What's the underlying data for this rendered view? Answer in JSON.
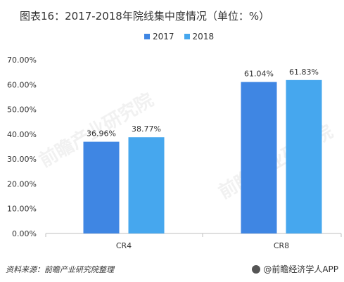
{
  "title": "图表16：2017-2018年院线集中度情况（单位：%）",
  "source": "资料来源：前瞻产业研究院整理",
  "brand": "@前瞻经济学人APP",
  "watermark": "前瞻产业研究院",
  "colors": {
    "s2017": "#3f86e3",
    "s2018": "#46a7ee",
    "axis": "#bfbfbf",
    "text": "#333333"
  },
  "chart_data": {
    "type": "bar",
    "categories": [
      "CR4",
      "CR8"
    ],
    "series": [
      {
        "name": "2017",
        "values": [
          36.96,
          61.04
        ]
      },
      {
        "name": "2018",
        "values": [
          38.77,
          61.83
        ]
      }
    ],
    "data_labels": [
      [
        "36.96%",
        "61.04%"
      ],
      [
        "38.77%",
        "61.83%"
      ]
    ],
    "ylim": [
      0,
      70
    ],
    "yticks": [
      "0.00%",
      "10.00%",
      "20.00%",
      "30.00%",
      "40.00%",
      "50.00%",
      "60.00%",
      "70.00%"
    ],
    "legend": "top-center",
    "grid": false
  }
}
